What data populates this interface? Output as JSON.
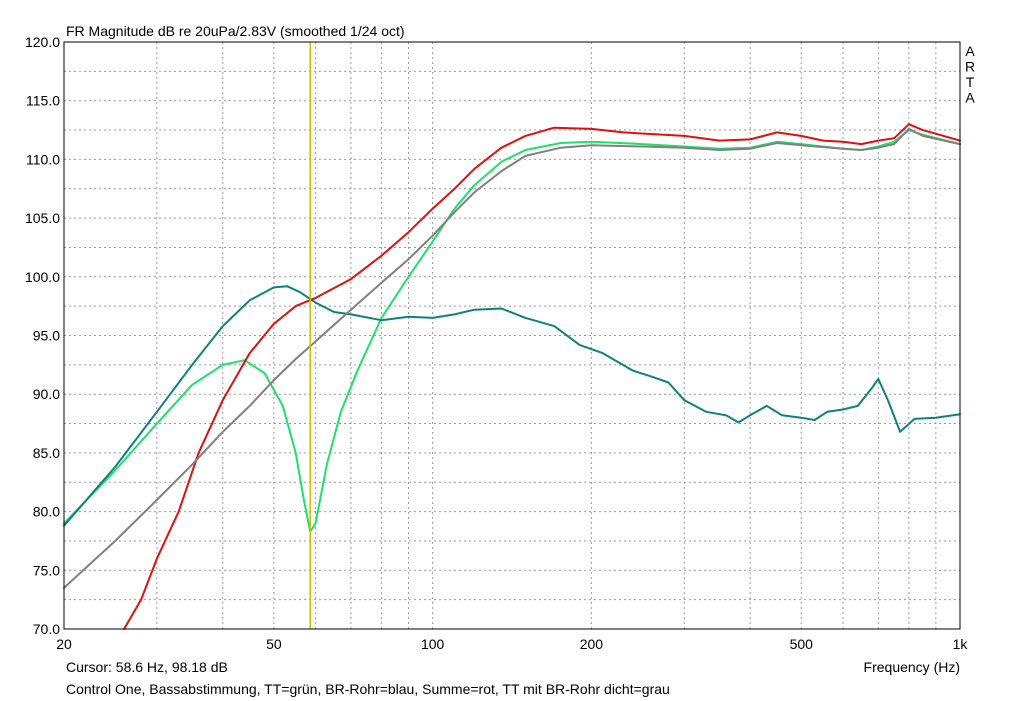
{
  "chart_data": {
    "type": "line",
    "title": "FR Magnitude dB re 20uPa/2.83V (smoothed 1/24 oct)",
    "xlabel": "Frequency (Hz)",
    "ylabel": "",
    "xscale": "log",
    "xlim": [
      20,
      1000
    ],
    "ylim": [
      70,
      120
    ],
    "grid": true,
    "y_ticks": [
      "120.0",
      "115.0",
      "110.0",
      "105.0",
      "100.0",
      "95.0",
      "90.0",
      "85.0",
      "80.0",
      "75.0",
      "70.0"
    ],
    "x_tick_labels": [
      {
        "value": 20,
        "label": "20"
      },
      {
        "value": 50,
        "label": "50"
      },
      {
        "value": 100,
        "label": "100"
      },
      {
        "value": 200,
        "label": "200"
      },
      {
        "value": 500,
        "label": "500"
      },
      {
        "value": 1000,
        "label": "1k"
      }
    ],
    "watermark": [
      "A",
      "R",
      "T",
      "A"
    ],
    "cursor": {
      "x": 58.6,
      "y": 98.18,
      "text": "Cursor: 58.6 Hz, 98.18 dB",
      "color": "#d4b800"
    },
    "caption": "Control One, Bassabstimmung, TT=grün, BR-Rohr=blau, Summe=rot, TT mit BR-Rohr dicht=grau",
    "series": [
      {
        "color": "#1fe06a",
        "points": [
          [
            20,
            79.0
          ],
          [
            25,
            83.5
          ],
          [
            30,
            87.5
          ],
          [
            35,
            90.8
          ],
          [
            40,
            92.5
          ],
          [
            44,
            92.9
          ],
          [
            48,
            91.8
          ],
          [
            52,
            89.0
          ],
          [
            55,
            85.0
          ],
          [
            57,
            81.0
          ],
          [
            58.6,
            78.3
          ],
          [
            60,
            79.0
          ],
          [
            63,
            84.0
          ],
          [
            67,
            88.5
          ],
          [
            72,
            92.0
          ],
          [
            80,
            96.5
          ],
          [
            90,
            100.0
          ],
          [
            100,
            103.0
          ],
          [
            110,
            105.8
          ],
          [
            120,
            107.8
          ],
          [
            135,
            109.8
          ],
          [
            150,
            110.8
          ],
          [
            175,
            111.4
          ],
          [
            200,
            111.5
          ],
          [
            250,
            111.3
          ],
          [
            300,
            111.1
          ],
          [
            350,
            110.9
          ],
          [
            400,
            111.0
          ],
          [
            450,
            111.5
          ],
          [
            500,
            111.3
          ],
          [
            600,
            110.9
          ],
          [
            650,
            110.8
          ],
          [
            700,
            111.1
          ],
          [
            750,
            111.5
          ],
          [
            800,
            112.5
          ],
          [
            850,
            112.1
          ],
          [
            1000,
            111.3
          ]
        ]
      },
      {
        "color": "#0e8080",
        "points": [
          [
            20,
            78.8
          ],
          [
            25,
            83.8
          ],
          [
            30,
            88.5
          ],
          [
            35,
            92.5
          ],
          [
            40,
            95.8
          ],
          [
            45,
            98.0
          ],
          [
            50,
            99.1
          ],
          [
            53,
            99.2
          ],
          [
            56,
            98.7
          ],
          [
            60,
            97.8
          ],
          [
            65,
            97.0
          ],
          [
            70,
            96.8
          ],
          [
            80,
            96.3
          ],
          [
            90,
            96.6
          ],
          [
            100,
            96.5
          ],
          [
            110,
            96.8
          ],
          [
            120,
            97.2
          ],
          [
            135,
            97.3
          ],
          [
            150,
            96.5
          ],
          [
            170,
            95.8
          ],
          [
            190,
            94.2
          ],
          [
            210,
            93.5
          ],
          [
            240,
            92.0
          ],
          [
            260,
            91.5
          ],
          [
            280,
            91.0
          ],
          [
            300,
            89.5
          ],
          [
            330,
            88.5
          ],
          [
            360,
            88.2
          ],
          [
            380,
            87.6
          ],
          [
            400,
            88.2
          ],
          [
            430,
            89.0
          ],
          [
            460,
            88.2
          ],
          [
            500,
            88.0
          ],
          [
            530,
            87.8
          ],
          [
            560,
            88.5
          ],
          [
            600,
            88.7
          ],
          [
            640,
            89.0
          ],
          [
            680,
            90.5
          ],
          [
            700,
            91.3
          ],
          [
            730,
            89.5
          ],
          [
            770,
            86.8
          ],
          [
            820,
            87.9
          ],
          [
            900,
            88.0
          ],
          [
            1000,
            88.3
          ]
        ]
      },
      {
        "color": "#dd1111",
        "points": [
          [
            26,
            70.0
          ],
          [
            28,
            72.5
          ],
          [
            30,
            76.0
          ],
          [
            33,
            80.0
          ],
          [
            36,
            85.0
          ],
          [
            40,
            89.5
          ],
          [
            45,
            93.5
          ],
          [
            50,
            96.0
          ],
          [
            55,
            97.5
          ],
          [
            60,
            98.2
          ],
          [
            70,
            99.8
          ],
          [
            80,
            101.8
          ],
          [
            90,
            103.8
          ],
          [
            100,
            105.8
          ],
          [
            110,
            107.5
          ],
          [
            120,
            109.2
          ],
          [
            135,
            111.0
          ],
          [
            150,
            112.0
          ],
          [
            170,
            112.7
          ],
          [
            200,
            112.6
          ],
          [
            230,
            112.3
          ],
          [
            300,
            112.0
          ],
          [
            350,
            111.6
          ],
          [
            400,
            111.7
          ],
          [
            450,
            112.3
          ],
          [
            500,
            112.0
          ],
          [
            550,
            111.6
          ],
          [
            600,
            111.5
          ],
          [
            650,
            111.3
          ],
          [
            700,
            111.6
          ],
          [
            750,
            111.8
          ],
          [
            800,
            113.0
          ],
          [
            850,
            112.5
          ],
          [
            1000,
            111.6
          ]
        ]
      },
      {
        "color": "#808080",
        "points": [
          [
            20,
            73.5
          ],
          [
            25,
            77.5
          ],
          [
            30,
            81.0
          ],
          [
            35,
            84.0
          ],
          [
            40,
            86.8
          ],
          [
            45,
            89.0
          ],
          [
            50,
            91.2
          ],
          [
            55,
            93.0
          ],
          [
            60,
            94.5
          ],
          [
            70,
            97.2
          ],
          [
            80,
            99.5
          ],
          [
            90,
            101.5
          ],
          [
            100,
            103.5
          ],
          [
            110,
            105.5
          ],
          [
            120,
            107.2
          ],
          [
            135,
            109.0
          ],
          [
            150,
            110.3
          ],
          [
            175,
            111.0
          ],
          [
            200,
            111.2
          ],
          [
            250,
            111.1
          ],
          [
            300,
            111.0
          ],
          [
            350,
            110.8
          ],
          [
            400,
            110.9
          ],
          [
            450,
            111.4
          ],
          [
            500,
            111.2
          ],
          [
            600,
            110.9
          ],
          [
            650,
            110.8
          ],
          [
            700,
            111.0
          ],
          [
            750,
            111.3
          ],
          [
            800,
            112.6
          ],
          [
            850,
            112.0
          ],
          [
            1000,
            111.3
          ]
        ]
      }
    ]
  }
}
